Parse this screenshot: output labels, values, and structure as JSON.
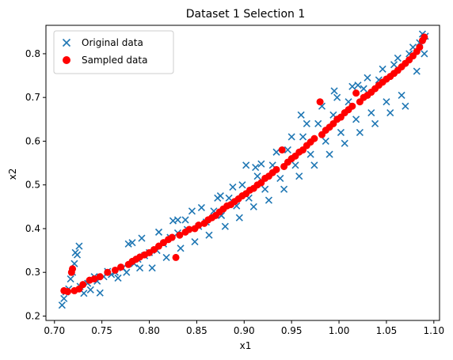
{
  "chart_data": {
    "type": "scatter",
    "title": "Dataset 1 Selection 1",
    "xlabel": "x1",
    "ylabel": "x2",
    "xlim": [
      0.691,
      1.106
    ],
    "ylim": [
      0.19,
      0.865
    ],
    "xticks": [
      "0.70",
      "0.75",
      "0.80",
      "0.85",
      "0.90",
      "0.95",
      "1.00",
      "1.05",
      "1.10"
    ],
    "yticks": [
      "0.2",
      "0.3",
      "0.4",
      "0.5",
      "0.6",
      "0.7",
      "0.8"
    ],
    "legend_position": "top-left",
    "grid": false,
    "series": [
      {
        "name": "Original data",
        "marker": "x",
        "color": "#1f77b4",
        "points": [
          [
            0.708,
            0.225
          ],
          [
            0.71,
            0.24
          ],
          [
            0.712,
            0.255
          ],
          [
            0.715,
            0.262
          ],
          [
            0.717,
            0.285
          ],
          [
            0.719,
            0.3
          ],
          [
            0.721,
            0.32
          ],
          [
            0.724,
            0.34
          ],
          [
            0.726,
            0.36
          ],
          [
            0.722,
            0.345
          ],
          [
            0.727,
            0.268
          ],
          [
            0.731,
            0.252
          ],
          [
            0.735,
            0.275
          ],
          [
            0.738,
            0.26
          ],
          [
            0.742,
            0.29
          ],
          [
            0.745,
            0.28
          ],
          [
            0.748,
            0.253
          ],
          [
            0.752,
            0.29
          ],
          [
            0.756,
            0.302
          ],
          [
            0.76,
            0.295
          ],
          [
            0.764,
            0.3
          ],
          [
            0.767,
            0.287
          ],
          [
            0.772,
            0.31
          ],
          [
            0.776,
            0.3
          ],
          [
            0.778,
            0.365
          ],
          [
            0.782,
            0.368
          ],
          [
            0.784,
            0.32
          ],
          [
            0.788,
            0.33
          ],
          [
            0.79,
            0.31
          ],
          [
            0.792,
            0.378
          ],
          [
            0.795,
            0.338
          ],
          [
            0.8,
            0.345
          ],
          [
            0.803,
            0.31
          ],
          [
            0.808,
            0.35
          ],
          [
            0.81,
            0.392
          ],
          [
            0.815,
            0.365
          ],
          [
            0.818,
            0.334
          ],
          [
            0.822,
            0.38
          ],
          [
            0.825,
            0.418
          ],
          [
            0.83,
            0.39
          ],
          [
            0.833,
            0.355
          ],
          [
            0.838,
            0.42
          ],
          [
            0.84,
            0.398
          ],
          [
            0.845,
            0.44
          ],
          [
            0.848,
            0.37
          ],
          [
            0.852,
            0.405
          ],
          [
            0.855,
            0.448
          ],
          [
            0.86,
            0.415
          ],
          [
            0.863,
            0.385
          ],
          [
            0.868,
            0.44
          ],
          [
            0.872,
            0.47
          ],
          [
            0.876,
            0.43
          ],
          [
            0.88,
            0.405
          ],
          [
            0.884,
            0.47
          ],
          [
            0.888,
            0.495
          ],
          [
            0.892,
            0.452
          ],
          [
            0.895,
            0.425
          ],
          [
            0.898,
            0.5
          ],
          [
            0.902,
            0.545
          ],
          [
            0.905,
            0.47
          ],
          [
            0.91,
            0.45
          ],
          [
            0.914,
            0.52
          ],
          [
            0.918,
            0.548
          ],
          [
            0.922,
            0.49
          ],
          [
            0.926,
            0.465
          ],
          [
            0.93,
            0.545
          ],
          [
            0.934,
            0.575
          ],
          [
            0.938,
            0.515
          ],
          [
            0.942,
            0.49
          ],
          [
            0.946,
            0.58
          ],
          [
            0.95,
            0.61
          ],
          [
            0.954,
            0.545
          ],
          [
            0.958,
            0.52
          ],
          [
            0.962,
            0.61
          ],
          [
            0.966,
            0.64
          ],
          [
            0.97,
            0.57
          ],
          [
            0.974,
            0.545
          ],
          [
            0.978,
            0.64
          ],
          [
            0.982,
            0.68
          ],
          [
            0.986,
            0.6
          ],
          [
            0.99,
            0.57
          ],
          [
            0.994,
            0.66
          ],
          [
            0.998,
            0.7
          ],
          [
            1.002,
            0.62
          ],
          [
            1.006,
            0.595
          ],
          [
            1.01,
            0.69
          ],
          [
            1.014,
            0.725
          ],
          [
            1.018,
            0.65
          ],
          [
            1.022,
            0.62
          ],
          [
            1.026,
            0.72
          ],
          [
            1.03,
            0.745
          ],
          [
            1.034,
            0.665
          ],
          [
            1.038,
            0.64
          ],
          [
            1.042,
            0.74
          ],
          [
            1.046,
            0.765
          ],
          [
            1.05,
            0.69
          ],
          [
            1.054,
            0.665
          ],
          [
            1.058,
            0.775
          ],
          [
            1.062,
            0.79
          ],
          [
            1.066,
            0.705
          ],
          [
            1.07,
            0.68
          ],
          [
            1.074,
            0.8
          ],
          [
            1.078,
            0.815
          ],
          [
            1.082,
            0.76
          ],
          [
            1.085,
            0.825
          ],
          [
            1.088,
            0.845
          ],
          [
            1.09,
            0.8
          ],
          [
            1.091,
            0.84
          ],
          [
            0.912,
            0.54
          ],
          [
            0.96,
            0.66
          ],
          [
            0.995,
            0.715
          ],
          [
            1.02,
            0.728
          ],
          [
            0.875,
            0.475
          ],
          [
            0.83,
            0.42
          ]
        ]
      },
      {
        "name": "Sampled data",
        "marker": "o",
        "color": "#ff0000",
        "points": [
          [
            0.71,
            0.258
          ],
          [
            0.714,
            0.256
          ],
          [
            0.718,
            0.3
          ],
          [
            0.719,
            0.308
          ],
          [
            0.721,
            0.258
          ],
          [
            0.726,
            0.262
          ],
          [
            0.73,
            0.272
          ],
          [
            0.737,
            0.282
          ],
          [
            0.742,
            0.285
          ],
          [
            0.748,
            0.29
          ],
          [
            0.756,
            0.3
          ],
          [
            0.764,
            0.305
          ],
          [
            0.77,
            0.312
          ],
          [
            0.778,
            0.318
          ],
          [
            0.782,
            0.325
          ],
          [
            0.786,
            0.33
          ],
          [
            0.79,
            0.335
          ],
          [
            0.795,
            0.34
          ],
          [
            0.8,
            0.345
          ],
          [
            0.805,
            0.352
          ],
          [
            0.81,
            0.36
          ],
          [
            0.815,
            0.368
          ],
          [
            0.82,
            0.375
          ],
          [
            0.824,
            0.38
          ],
          [
            0.828,
            0.334
          ],
          [
            0.832,
            0.385
          ],
          [
            0.838,
            0.392
          ],
          [
            0.842,
            0.398
          ],
          [
            0.848,
            0.4
          ],
          [
            0.852,
            0.408
          ],
          [
            0.858,
            0.412
          ],
          [
            0.862,
            0.42
          ],
          [
            0.866,
            0.425
          ],
          [
            0.87,
            0.43
          ],
          [
            0.874,
            0.438
          ],
          [
            0.878,
            0.445
          ],
          [
            0.882,
            0.452
          ],
          [
            0.886,
            0.455
          ],
          [
            0.89,
            0.462
          ],
          [
            0.894,
            0.468
          ],
          [
            0.898,
            0.475
          ],
          [
            0.902,
            0.48
          ],
          [
            0.906,
            0.488
          ],
          [
            0.91,
            0.492
          ],
          [
            0.914,
            0.5
          ],
          [
            0.918,
            0.505
          ],
          [
            0.922,
            0.515
          ],
          [
            0.926,
            0.52
          ],
          [
            0.93,
            0.528
          ],
          [
            0.934,
            0.535
          ],
          [
            0.94,
            0.58
          ],
          [
            0.942,
            0.542
          ],
          [
            0.946,
            0.552
          ],
          [
            0.95,
            0.56
          ],
          [
            0.954,
            0.566
          ],
          [
            0.958,
            0.575
          ],
          [
            0.962,
            0.58
          ],
          [
            0.966,
            0.59
          ],
          [
            0.97,
            0.598
          ],
          [
            0.974,
            0.606
          ],
          [
            0.98,
            0.69
          ],
          [
            0.982,
            0.615
          ],
          [
            0.986,
            0.625
          ],
          [
            0.99,
            0.632
          ],
          [
            0.994,
            0.64
          ],
          [
            0.998,
            0.65
          ],
          [
            1.002,
            0.655
          ],
          [
            1.006,
            0.665
          ],
          [
            1.01,
            0.672
          ],
          [
            1.014,
            0.68
          ],
          [
            1.018,
            0.71
          ],
          [
            1.022,
            0.69
          ],
          [
            1.026,
            0.7
          ],
          [
            1.03,
            0.705
          ],
          [
            1.034,
            0.712
          ],
          [
            1.038,
            0.72
          ],
          [
            1.042,
            0.728
          ],
          [
            1.046,
            0.735
          ],
          [
            1.05,
            0.742
          ],
          [
            1.054,
            0.748
          ],
          [
            1.058,
            0.755
          ],
          [
            1.062,
            0.762
          ],
          [
            1.066,
            0.77
          ],
          [
            1.07,
            0.778
          ],
          [
            1.074,
            0.786
          ],
          [
            1.078,
            0.795
          ],
          [
            1.082,
            0.805
          ],
          [
            1.085,
            0.815
          ],
          [
            1.088,
            0.83
          ],
          [
            1.09,
            0.838
          ]
        ]
      }
    ]
  }
}
